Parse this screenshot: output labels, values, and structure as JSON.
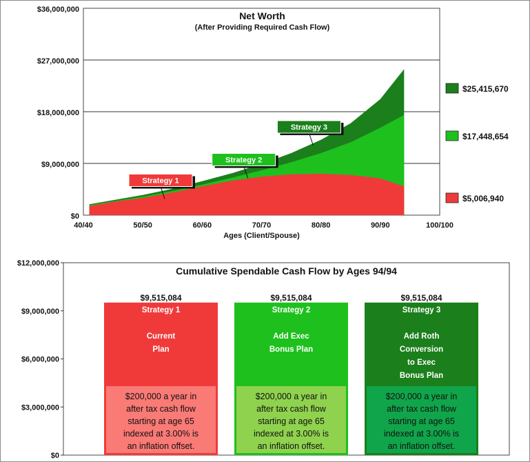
{
  "chart_data": [
    {
      "type": "area",
      "title": "Net Worth",
      "subtitle": "(After Providing Required Cash Flow)",
      "xlabel": "Ages (Client/Spouse)",
      "ylabel": "",
      "x_ticks": [
        "40/40",
        "50/50",
        "60/60",
        "70/70",
        "80/80",
        "90/90",
        "100/100"
      ],
      "y_ticks": [
        "$36,000,000",
        "$27,000,000",
        "$18,000,000",
        "$9,000,000",
        "$0"
      ],
      "xlim": [
        40,
        100
      ],
      "ylim": [
        0,
        36000000
      ],
      "grid": "horizontal",
      "x": [
        41,
        45,
        50,
        55,
        60,
        65,
        70,
        75,
        80,
        85,
        90,
        94
      ],
      "series": [
        {
          "name": "Strategy 3",
          "color": "#1b7f1b",
          "values": [
            1900000,
            2600000,
            3500000,
            4600000,
            5900000,
            7300000,
            8900000,
            10800000,
            13100000,
            16000000,
            20200000,
            25415670
          ]
        },
        {
          "name": "Strategy 2",
          "color": "#1ec01e",
          "values": [
            1750000,
            2400000,
            3200000,
            4200000,
            5300000,
            6500000,
            7800000,
            9200000,
            10800000,
            12700000,
            15200000,
            17448654
          ]
        },
        {
          "name": "Strategy 1",
          "color": "#f03a3a",
          "values": [
            1600000,
            2300000,
            3000000,
            3950000,
            5000000,
            6000000,
            6700000,
            7100000,
            7200000,
            7000000,
            6400000,
            5006940
          ]
        }
      ],
      "legend": [
        {
          "label": "$25,415,670",
          "color": "#1b7f1b"
        },
        {
          "label": "$17,448,654",
          "color": "#1ec01e"
        },
        {
          "label": "$5,006,940",
          "color": "#f03a3a"
        }
      ],
      "callouts": [
        {
          "label": "Strategy 1",
          "color": "#f03a3a",
          "x": 53,
          "y": 3300000
        },
        {
          "label": "Strategy 2",
          "color": "#1ec01e",
          "x": 67,
          "y": 6900000
        },
        {
          "label": "Strategy 3",
          "color": "#1b7f1b",
          "x": 78,
          "y": 12600000
        }
      ]
    },
    {
      "type": "bar",
      "title": "Cumulative Spendable Cash Flow by Ages 94/94",
      "y_ticks": [
        "$12,000,000",
        "$9,000,000",
        "$6,000,000",
        "$3,000,000",
        "$0"
      ],
      "ylim": [
        0,
        12000000
      ],
      "categories": [
        "Strategy 1",
        "Strategy 2",
        "Strategy 3"
      ],
      "values": [
        9515084,
        9515084,
        9515084
      ],
      "value_labels": [
        "$9,515,084",
        "$9,515,084",
        "$9,515,084"
      ],
      "bars": [
        {
          "lines": [
            "Strategy 1",
            "",
            "Current",
            "Plan"
          ],
          "color": "#f03a3a",
          "note_bg": "#fa7a76",
          "note": [
            "$200,000  a year in",
            "after tax cash flow",
            "starting at age 65",
            "indexed at 3.00% is",
            "an inflation offset."
          ]
        },
        {
          "lines": [
            "Strategy 2",
            "",
            "Add Exec",
            "Bonus Plan"
          ],
          "color": "#1ec01e",
          "note_bg": "#8fd24e",
          "note": [
            "$200,000  a year in",
            "after tax cash flow",
            "starting at age 65",
            "indexed at 3.00% is",
            "an inflation offset."
          ]
        },
        {
          "lines": [
            "Strategy 3",
            "",
            "Add Roth",
            "Conversion",
            "to Exec",
            "Bonus Plan"
          ],
          "color": "#1b7f1b",
          "note_bg": "#10a54a",
          "note": [
            "$200,000  a year in",
            "after tax cash flow",
            "starting at age 65",
            "indexed at 3.00% is",
            "an inflation offset."
          ]
        }
      ]
    }
  ]
}
